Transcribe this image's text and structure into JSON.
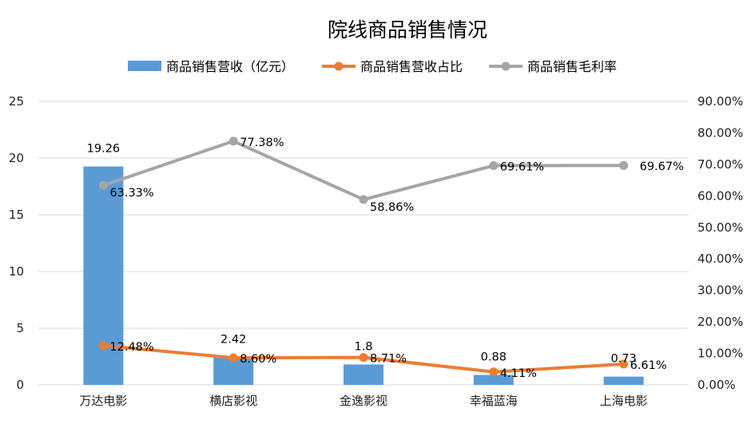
{
  "chart_data": {
    "type": "bar+line",
    "title": "院线商品销售情况",
    "categories": [
      "万达电影",
      "横店影视",
      "金逸影视",
      "幸福蓝海",
      "上海电影"
    ],
    "series": [
      {
        "name": "商品销售营收（亿元）",
        "type": "bar",
        "axis": "left",
        "color": "#5B9BD5",
        "values": [
          19.26,
          2.42,
          1.8,
          0.88,
          0.73
        ],
        "labels": [
          "19.26",
          "2.42",
          "1.8",
          "0.88",
          "0.73"
        ]
      },
      {
        "name": "商品销售营收占比",
        "type": "line",
        "axis": "right",
        "color": "#ED7D31",
        "values": [
          12.48,
          8.6,
          8.71,
          4.11,
          6.61
        ],
        "labels": [
          "12.48%",
          "8.60%",
          "8.71%",
          "4.11%",
          "6.61%"
        ]
      },
      {
        "name": "商品销售毛利率",
        "type": "line",
        "axis": "right",
        "color": "#A5A5A5",
        "values": [
          63.33,
          77.38,
          58.86,
          69.61,
          69.67
        ],
        "labels": [
          "63.33%",
          "77.38%",
          "58.86%",
          "69.61%",
          "69.67%"
        ]
      }
    ],
    "y_left": {
      "min": 0,
      "max": 25,
      "ticks": [
        "0",
        "5",
        "10",
        "15",
        "20",
        "25"
      ]
    },
    "y_right": {
      "min": 0,
      "max": 90,
      "ticks": [
        "0.00%",
        "10.00%",
        "20.00%",
        "30.00%",
        "40.00%",
        "50.00%",
        "60.00%",
        "70.00%",
        "80.00%",
        "90.00%"
      ]
    },
    "legend": "top",
    "grid": true
  }
}
